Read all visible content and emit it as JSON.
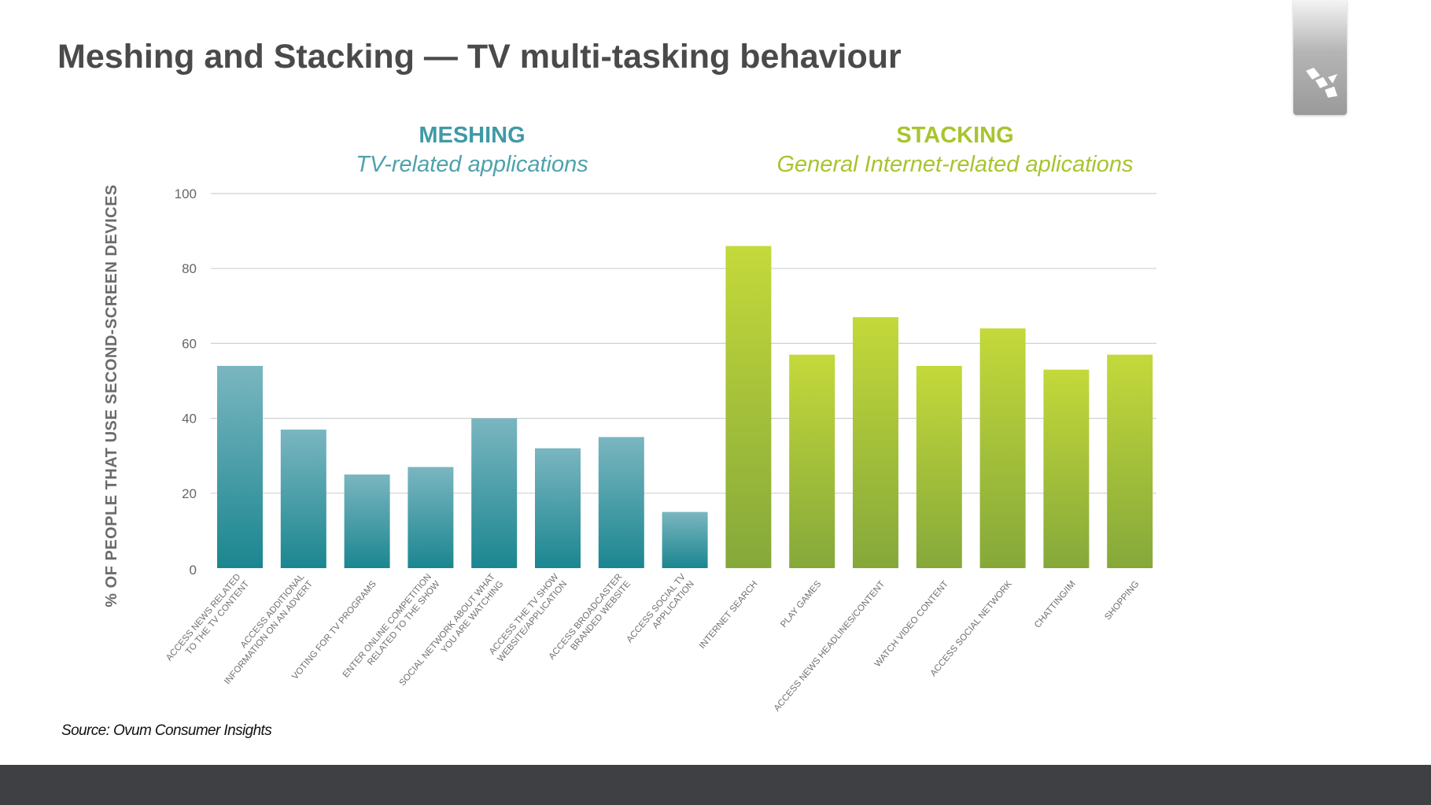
{
  "slide": {
    "title": "Meshing and Stacking — TV multi-tasking behaviour",
    "source": "Source: Ovum Consumer Insights"
  },
  "logo": {
    "icon": "company-logo-icon"
  },
  "chart_data": {
    "type": "bar",
    "ylabel": "% OF PEOPLE THAT USE SECOND-SCREEN DEVICES",
    "ylim": [
      0,
      100
    ],
    "yticks": [
      0,
      20,
      40,
      60,
      80,
      100
    ],
    "grid": true,
    "groups": [
      {
        "heading": "MESHING",
        "subheading": "TV-related applications",
        "color": "#1b8690",
        "color_light": "#7ab6c0",
        "categories": [
          "ACCESS NEWS RELATED|TO THE TV CONTENT",
          "ACCESS ADDITIONAL|INFORMATION ON AN ADVERT",
          "VOTING FOR TV PROGRAMS",
          "ENTER ONLINE COMPETITION|RELATED TO THE SHOW",
          "SOCIAL NETWORK ABOUT WHAT|YOU ARE WATCHING",
          "ACCESS THE TV SHOW|WEBSITE/APPLICATION",
          "ACCESS BROADCASTER|BRANDED WEBSITE",
          "ACCESS SOCIAL TV|APPLICATION"
        ],
        "values": [
          54,
          37,
          25,
          27,
          40,
          32,
          35,
          15
        ]
      },
      {
        "heading": "STACKING",
        "subheading": "General Internet-related aplications",
        "color": "#85a83a",
        "color_light": "#c4d93a",
        "categories": [
          "INTERNET SEARCH",
          "PLAY GAMES",
          "ACCESS NEWS HEADLINES/CONTENT",
          "WATCH VIDEO CONTENT",
          "ACCESS SOCIAL NETWORK",
          "CHATTING/IM",
          "SHOPPING"
        ],
        "values": [
          86,
          57,
          67,
          54,
          64,
          53,
          57
        ]
      }
    ]
  }
}
